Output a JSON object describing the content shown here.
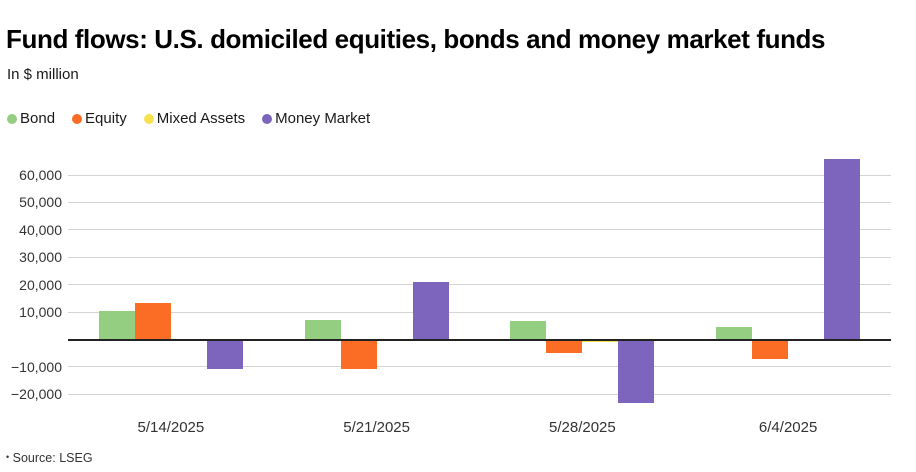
{
  "chart_data": {
    "type": "bar",
    "title": "Fund flows: U.S. domiciled equities, bonds and money market funds",
    "subtitle": "In $ million",
    "categories": [
      "5/14/2025",
      "5/21/2025",
      "5/28/2025",
      "6/4/2025"
    ],
    "series": [
      {
        "name": "Bond",
        "color": "#94ce80",
        "values": [
          10300,
          7100,
          6800,
          4600
        ]
      },
      {
        "name": "Equity",
        "color": "#fb6c25",
        "values": [
          13500,
          -10900,
          -5100,
          -7200
        ]
      },
      {
        "name": "Mixed Assets",
        "color": "#f6e14f",
        "values": [
          100,
          -100,
          -800,
          -500
        ]
      },
      {
        "name": "Money Market",
        "color": "#7d64bd",
        "values": [
          -10600,
          20900,
          -23200,
          65800
        ]
      }
    ],
    "ylim": [
      -24250,
      68400
    ],
    "yticks": [
      {
        "v": 60000,
        "label": "60,000"
      },
      {
        "v": 50000,
        "label": "50,000"
      },
      {
        "v": 40000,
        "label": "40,000"
      },
      {
        "v": 30000,
        "label": "30,000"
      },
      {
        "v": 20000,
        "label": "20,000"
      },
      {
        "v": 10000,
        "label": "10,000"
      },
      {
        "v": -10000,
        "label": "−10,000"
      },
      {
        "v": -20000,
        "label": "−20,000"
      }
    ],
    "grid": true,
    "legend_position": "top"
  },
  "source": {
    "bullet": "•",
    "text": "Source: LSEG"
  }
}
